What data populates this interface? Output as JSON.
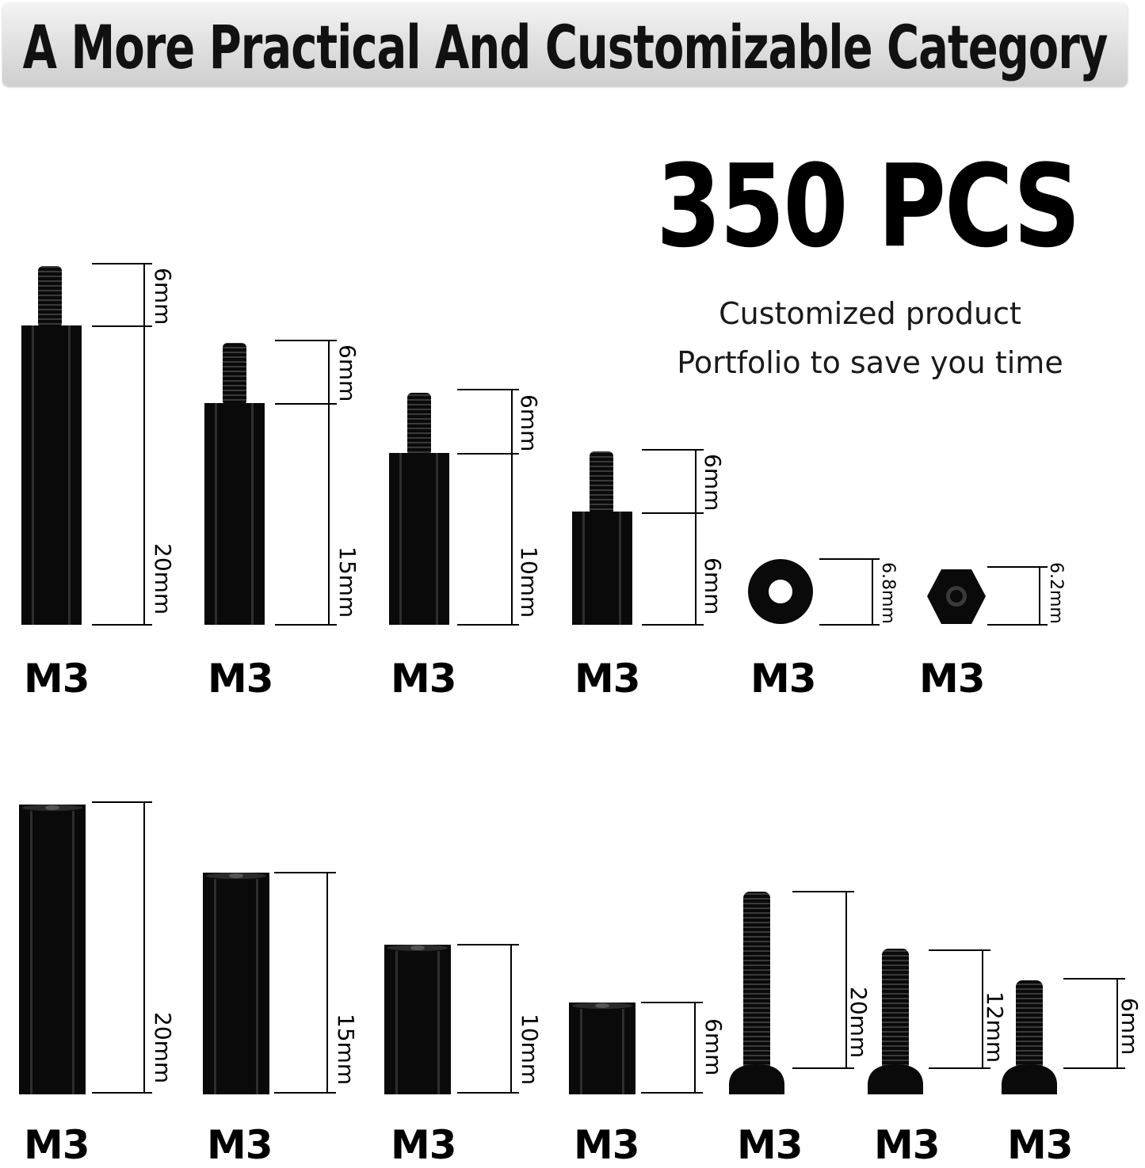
{
  "banner": {
    "title": "A More Practical And Customizable Category"
  },
  "headline": {
    "count": "350 PCS"
  },
  "tagline": {
    "line1": "Customized product",
    "line2": "Portfolio to save you time"
  },
  "colors": {
    "part": "#0a0a0a",
    "banner_top": "#f4f4f4",
    "banner_bottom": "#cfcfcf",
    "text": "#000000"
  },
  "row1": {
    "labels": [
      "M3",
      "M3",
      "M3",
      "M3",
      "M3",
      "M3"
    ],
    "dims": {
      "standoff_20_thread": "6mm",
      "standoff_20_body": "20mm",
      "standoff_15_thread": "6mm",
      "standoff_15_body": "15mm",
      "standoff_10_thread": "6mm",
      "standoff_10_body": "10mm",
      "standoff_6_thread": "6mm",
      "standoff_6_body": "6mm",
      "washer": "6.8mm",
      "nut": "6.2mm"
    }
  },
  "row2": {
    "labels": [
      "M3",
      "M3",
      "M3",
      "M3",
      "M3",
      "M3",
      "M3"
    ],
    "dims": {
      "spacer_20": "20mm",
      "spacer_15": "15mm",
      "spacer_10": "10mm",
      "spacer_6": "6mm",
      "screw_20": "20mm",
      "screw_12": "12mm",
      "screw_6": "6mm"
    }
  }
}
